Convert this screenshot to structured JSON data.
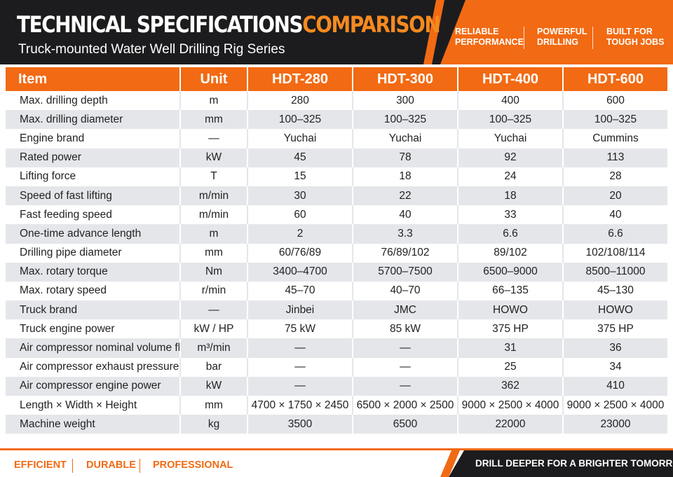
{
  "header": {
    "title_white": "TECHNICAL SPECIFICATIONS",
    "title_orange": "COMPARISON",
    "subtitle": "Truck-mounted Water Well Drilling Rig Series",
    "taglines": [
      {
        "line1": "RELIABLE",
        "line2": "PERFORMANCE"
      },
      {
        "line1": "POWERFUL",
        "line2": "DRILLING"
      },
      {
        "line1": "BUILT FOR",
        "line2": "TOUGH JOBS"
      }
    ]
  },
  "table": {
    "headers": [
      "Item",
      "Unit",
      "HDT-280",
      "HDT-300",
      "HDT-400",
      "HDT-600"
    ],
    "rows": [
      [
        "Max. drilling depth",
        "m",
        "280",
        "300",
        "400",
        "600"
      ],
      [
        "Max. drilling diameter",
        "mm",
        "100–325",
        "100–325",
        "100–325",
        "100–325"
      ],
      [
        "Engine brand",
        "—",
        "Yuchai",
        "Yuchai",
        "Yuchai",
        "Cummins"
      ],
      [
        "Rated power",
        "kW",
        "45",
        "78",
        "92",
        "113"
      ],
      [
        "Lifting force",
        "T",
        "15",
        "18",
        "24",
        "28"
      ],
      [
        "Speed of fast lifting",
        "m/min",
        "30",
        "22",
        "18",
        "20"
      ],
      [
        "Fast feeding speed",
        "m/min",
        "60",
        "40",
        "33",
        "40"
      ],
      [
        "One-time advance length",
        "m",
        "2",
        "3.3",
        "6.6",
        "6.6"
      ],
      [
        "Drilling pipe diameter",
        "mm",
        "60/76/89",
        "76/89/102",
        "89/102",
        "102/108/114"
      ],
      [
        "Max. rotary torque",
        "Nm",
        "3400–4700",
        "5700–7500",
        "6500–9000",
        "8500–11000"
      ],
      [
        "Max. rotary speed",
        "r/min",
        "45–70",
        "40–70",
        "66–135",
        "45–130"
      ],
      [
        "Truck brand",
        "—",
        "Jinbei",
        "JMC",
        "HOWO",
        "HOWO"
      ],
      [
        "Truck engine power",
        "kW / HP",
        "75 kW",
        "85 kW",
        "375 HP",
        "375 HP"
      ],
      [
        "Air compressor nominal volume flow",
        "m³/min",
        "—",
        "—",
        "31",
        "36"
      ],
      [
        "Air compressor exhaust pressure",
        "bar",
        "—",
        "—",
        "25",
        "34"
      ],
      [
        "Air compressor engine power",
        "kW",
        "—",
        "—",
        "362",
        "410"
      ],
      [
        "Length × Width × Height",
        "mm",
        "4700 × 1750 × 2450",
        "6500 × 2000 × 2500",
        "9000 × 2500 × 4000",
        "9000 × 2500 × 4000"
      ],
      [
        "Machine weight",
        "kg",
        "3500",
        "6500",
        "22000",
        "23000"
      ]
    ]
  },
  "footer": {
    "words": [
      "EFFICIENT",
      "DURABLE",
      "PROFESSIONAL"
    ],
    "slogan": "DRILL DEEPER FOR A BRIGHTER TOMORROW"
  },
  "colors": {
    "accent": "#f26a13",
    "dark": "#1c1c1e",
    "row_alt": "#e4e6ea"
  }
}
